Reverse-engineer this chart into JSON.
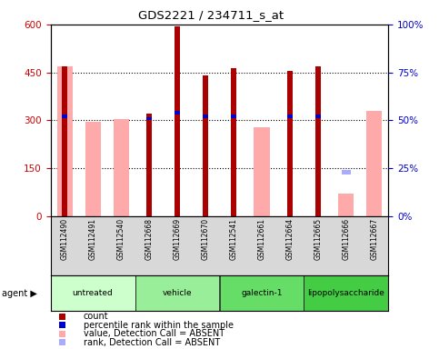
{
  "title": "GDS2221 / 234711_s_at",
  "samples": [
    "GSM112490",
    "GSM112491",
    "GSM112540",
    "GSM112668",
    "GSM112669",
    "GSM112670",
    "GSM112541",
    "GSM112661",
    "GSM112664",
    "GSM112665",
    "GSM112666",
    "GSM112667"
  ],
  "count": [
    470,
    null,
    null,
    320,
    595,
    440,
    463,
    null,
    455,
    468,
    null,
    null
  ],
  "percentile_rank": [
    52,
    null,
    null,
    51,
    54,
    52,
    52,
    null,
    52,
    52,
    null,
    null
  ],
  "value_absent": [
    470,
    297,
    303,
    null,
    null,
    null,
    null,
    280,
    null,
    null,
    70,
    330
  ],
  "rank_absent": [
    null,
    null,
    null,
    null,
    null,
    null,
    null,
    null,
    null,
    null,
    23,
    null
  ],
  "groups": [
    {
      "label": "untreated",
      "start": 0,
      "end": 3,
      "color": "#ccffcc"
    },
    {
      "label": "vehicle",
      "start": 3,
      "end": 6,
      "color": "#99ee99"
    },
    {
      "label": "galectin-1",
      "start": 6,
      "end": 9,
      "color": "#66dd66"
    },
    {
      "label": "lipopolysaccharide",
      "start": 9,
      "end": 12,
      "color": "#44cc44"
    }
  ],
  "ylim_left": [
    0,
    600
  ],
  "ylim_right": [
    0,
    100
  ],
  "yticks_left": [
    0,
    150,
    300,
    450,
    600
  ],
  "yticks_right": [
    0,
    25,
    50,
    75,
    100
  ],
  "count_color": "#aa0000",
  "percentile_color": "#0000cc",
  "value_absent_color": "#ffaaaa",
  "rank_absent_color": "#aaaaff",
  "left_label_color": "#cc0000",
  "right_label_color": "#0000cc",
  "grid_lines": [
    150,
    300,
    450
  ]
}
